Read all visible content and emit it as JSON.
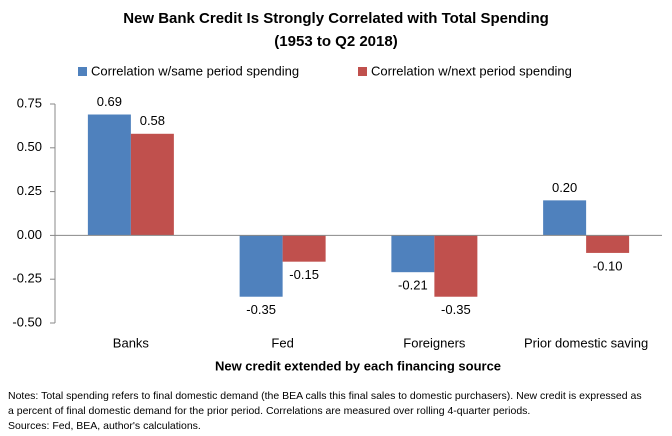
{
  "chart_data": {
    "type": "bar",
    "title": [
      "New Bank Credit Is Strongly Correlated with Total Spending",
      "(1953 to Q2 2018)"
    ],
    "categories": [
      "Banks",
      "Fed",
      "Foreigners",
      "Prior domestic saving"
    ],
    "series": [
      {
        "name": "Correlation w/same period spending",
        "color": "#4f81bd",
        "values": [
          0.69,
          -0.35,
          -0.21,
          0.2
        ],
        "value_labels": [
          "0.69",
          "-0.35",
          "-0.21",
          "0.20"
        ]
      },
      {
        "name": "Correlation w/next period spending",
        "color": "#c0504d",
        "values": [
          0.58,
          -0.15,
          -0.35,
          -0.1
        ],
        "value_labels": [
          "0.58",
          "-0.15",
          "-0.35",
          "-0.10"
        ]
      }
    ],
    "ylim": [
      -0.5,
      0.75
    ],
    "yticks": [
      {
        "value": -0.5,
        "label": "-0.50"
      },
      {
        "value": -0.25,
        "label": "-0.25"
      },
      {
        "value": 0,
        "label": "0.00"
      },
      {
        "value": 0.25,
        "label": "0.25"
      },
      {
        "value": 0.5,
        "label": "0.50"
      },
      {
        "value": 0.75,
        "label": "0.75"
      }
    ],
    "xlabel": "New credit extended by each financing source",
    "notes": [
      "Notes: Total spending refers to final domestic demand (the BEA calls this final sales to domestic purchasers). New credit is expressed as",
      "a percent of final domestic demand for the prior period. Correlations are measured over rolling 4-quarter periods.",
      "Sources: Fed, BEA, author's calculations."
    ]
  }
}
